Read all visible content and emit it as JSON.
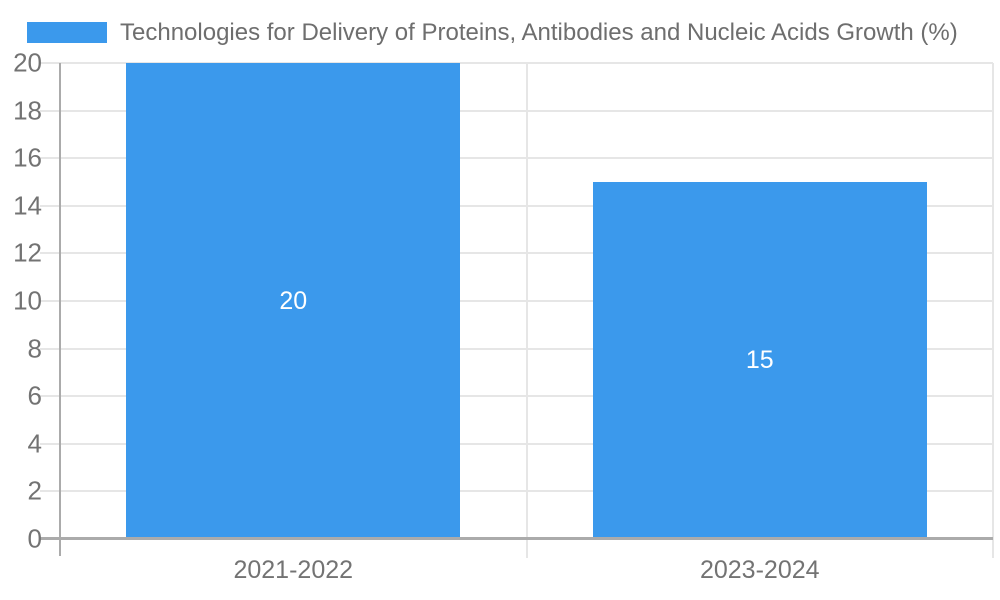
{
  "chart_data": {
    "type": "bar",
    "legend": {
      "label": "Technologies for Delivery of Proteins, Antibodies and Nucleic Acids Growth (%)",
      "position": "top-left"
    },
    "categories": [
      "2021-2022",
      "2023-2024"
    ],
    "values": [
      20,
      15
    ],
    "title": "",
    "xlabel": "",
    "ylabel": "",
    "ylim": [
      0,
      20
    ],
    "ytick_step": 2,
    "grid": true,
    "colors": {
      "bar": "#3b99ec",
      "grid": "#e6e6e6",
      "axis": "#ababab",
      "tick_text": "#737373",
      "legend_text": "#6e6e6e",
      "value_text": "#ffffff",
      "background": "#ffffff"
    }
  }
}
